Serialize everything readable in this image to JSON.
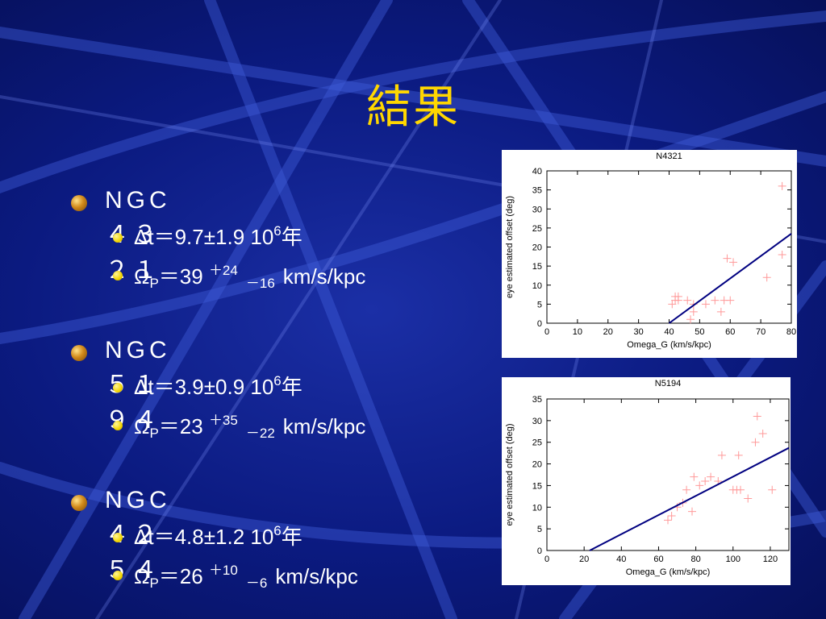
{
  "slide": {
    "title": "結果",
    "galaxies": [
      {
        "name": "NGC４３２１",
        "dt": "Δt＝9.7±1.9  10",
        "dt_exp": "6",
        "dt_unit": "年",
        "omega_label": "Ω",
        "omega_sub": "P",
        "omega_val": "＝39 ",
        "plus": "＋24",
        "minus": "－16",
        "omega_unit": "km/s/kpc"
      },
      {
        "name": "NGC５１９４",
        "dt": "Δt＝3.9±0.9  10",
        "dt_exp": "6",
        "dt_unit": "年",
        "omega_label": "Ω",
        "omega_sub": "P",
        "omega_val": "＝23 ",
        "plus": "＋35",
        "minus": "－22",
        "omega_unit": "km/s/kpc"
      },
      {
        "name": "NGC４２５４",
        "dt": "Δt＝4.8±1.2  10",
        "dt_exp": "6",
        "dt_unit": "年",
        "omega_label": "Ω",
        "omega_sub": "P",
        "omega_val": "＝26 ",
        "plus": "＋10",
        "minus": "－6",
        "omega_unit": "km/s/kpc"
      }
    ]
  },
  "chart_data": [
    {
      "type": "scatter",
      "title": "N4321",
      "xlabel": "Omega_G (km/s/kpc)",
      "ylabel": "eye estimated offset (deg)",
      "xlim": [
        0,
        80
      ],
      "ylim": [
        0,
        40
      ],
      "xticks": [
        0,
        10,
        20,
        30,
        40,
        50,
        60,
        70,
        80
      ],
      "yticks": [
        0,
        5,
        10,
        15,
        20,
        25,
        30,
        35,
        40
      ],
      "marker_color": "#ff9999",
      "line_color": "#000080",
      "points": [
        [
          41,
          5
        ],
        [
          42,
          6
        ],
        [
          42,
          7
        ],
        [
          43,
          6
        ],
        [
          43,
          7
        ],
        [
          46,
          6
        ],
        [
          47,
          1
        ],
        [
          48,
          3
        ],
        [
          48,
          5
        ],
        [
          52,
          5
        ],
        [
          55,
          6
        ],
        [
          57,
          3
        ],
        [
          58,
          6
        ],
        [
          59,
          17
        ],
        [
          60,
          6
        ],
        [
          61,
          16
        ],
        [
          72,
          12
        ],
        [
          77,
          36
        ],
        [
          77,
          18
        ]
      ],
      "fit_line": [
        [
          40,
          0
        ],
        [
          80,
          23.5
        ]
      ]
    },
    {
      "type": "scatter",
      "title": "N5194",
      "xlabel": "Omega_G (km/s/kpc)",
      "ylabel": "eye estimated offset (deg)",
      "xlim": [
        0,
        130
      ],
      "ylim": [
        0,
        35
      ],
      "xticks": [
        0,
        20,
        40,
        60,
        80,
        100,
        120
      ],
      "yticks": [
        0,
        5,
        10,
        15,
        20,
        25,
        30,
        35
      ],
      "marker_color": "#ff9999",
      "line_color": "#000080",
      "points": [
        [
          65,
          7
        ],
        [
          67,
          8
        ],
        [
          70,
          10
        ],
        [
          73,
          11
        ],
        [
          75,
          14
        ],
        [
          78,
          9
        ],
        [
          79,
          17
        ],
        [
          82,
          15
        ],
        [
          85,
          16
        ],
        [
          88,
          17
        ],
        [
          92,
          16
        ],
        [
          94,
          22
        ],
        [
          100,
          14
        ],
        [
          102,
          14
        ],
        [
          103,
          22
        ],
        [
          104,
          14
        ],
        [
          108,
          12
        ],
        [
          112,
          25
        ],
        [
          113,
          31
        ],
        [
          116,
          27
        ],
        [
          121,
          14
        ]
      ],
      "fit_line": [
        [
          23,
          0
        ],
        [
          130,
          23.7
        ]
      ]
    }
  ]
}
